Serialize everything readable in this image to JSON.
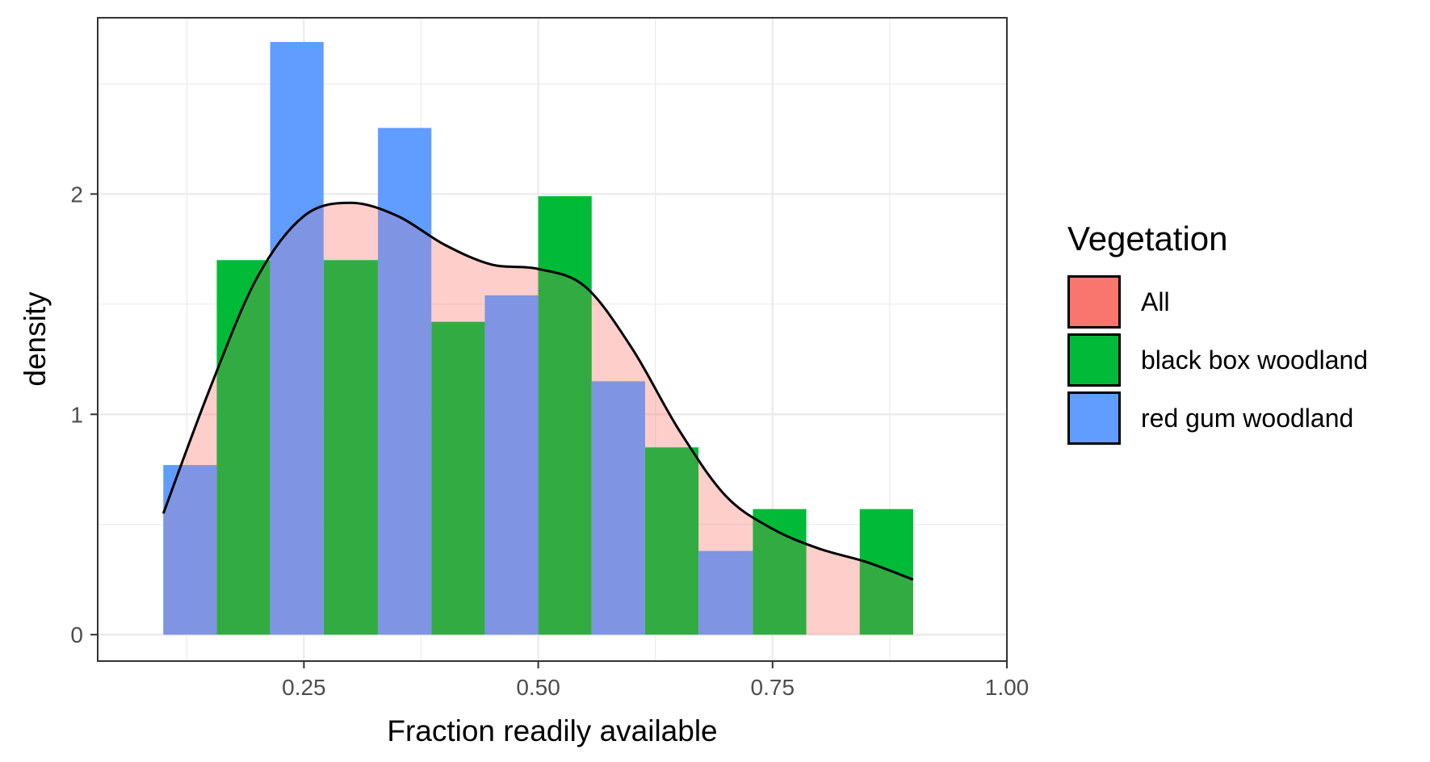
{
  "chart_data": {
    "type": "bar",
    "title": "",
    "xlabel": "Fraction readily available",
    "ylabel": "density",
    "xlim": [
      0.03,
      1.0
    ],
    "ylim": [
      -0.12,
      2.8
    ],
    "xticks": [
      0.25,
      0.5,
      0.75,
      1.0
    ],
    "xtick_labels": [
      "0.25",
      "0.50",
      "0.75",
      "1.00"
    ],
    "yticks": [
      0,
      1,
      2
    ],
    "ytick_labels": [
      "0",
      "1",
      "2"
    ],
    "grid": true,
    "legend_position": "right",
    "legend_title": "Vegetation",
    "bin_edges": [
      0.1,
      0.157,
      0.214,
      0.271,
      0.329,
      0.386,
      0.443,
      0.5,
      0.557,
      0.614,
      0.671,
      0.729,
      0.786,
      0.843,
      0.9
    ],
    "series": [
      {
        "name": "All",
        "color": "#F8766D",
        "kind": "density",
        "x": [
          0.1,
          0.15,
          0.2,
          0.25,
          0.3,
          0.35,
          0.4,
          0.45,
          0.5,
          0.55,
          0.6,
          0.65,
          0.7,
          0.75,
          0.8,
          0.85,
          0.9
        ],
        "values": [
          0.55,
          1.12,
          1.62,
          1.9,
          1.96,
          1.9,
          1.77,
          1.68,
          1.66,
          1.58,
          1.3,
          0.93,
          0.63,
          0.48,
          0.39,
          0.33,
          0.25
        ]
      },
      {
        "name": "black box woodland",
        "color": "#00BA38",
        "kind": "histogram",
        "values": [
          0,
          1.7,
          0,
          1.7,
          0,
          1.42,
          0,
          1.99,
          0,
          0.85,
          0,
          0.57,
          0,
          0.57
        ]
      },
      {
        "name": "red gum woodland",
        "color": "#619CFF",
        "kind": "histogram",
        "values": [
          0.77,
          0,
          2.69,
          0,
          2.3,
          0,
          1.54,
          0,
          1.15,
          0,
          0.38,
          0,
          0,
          0
        ]
      }
    ]
  }
}
